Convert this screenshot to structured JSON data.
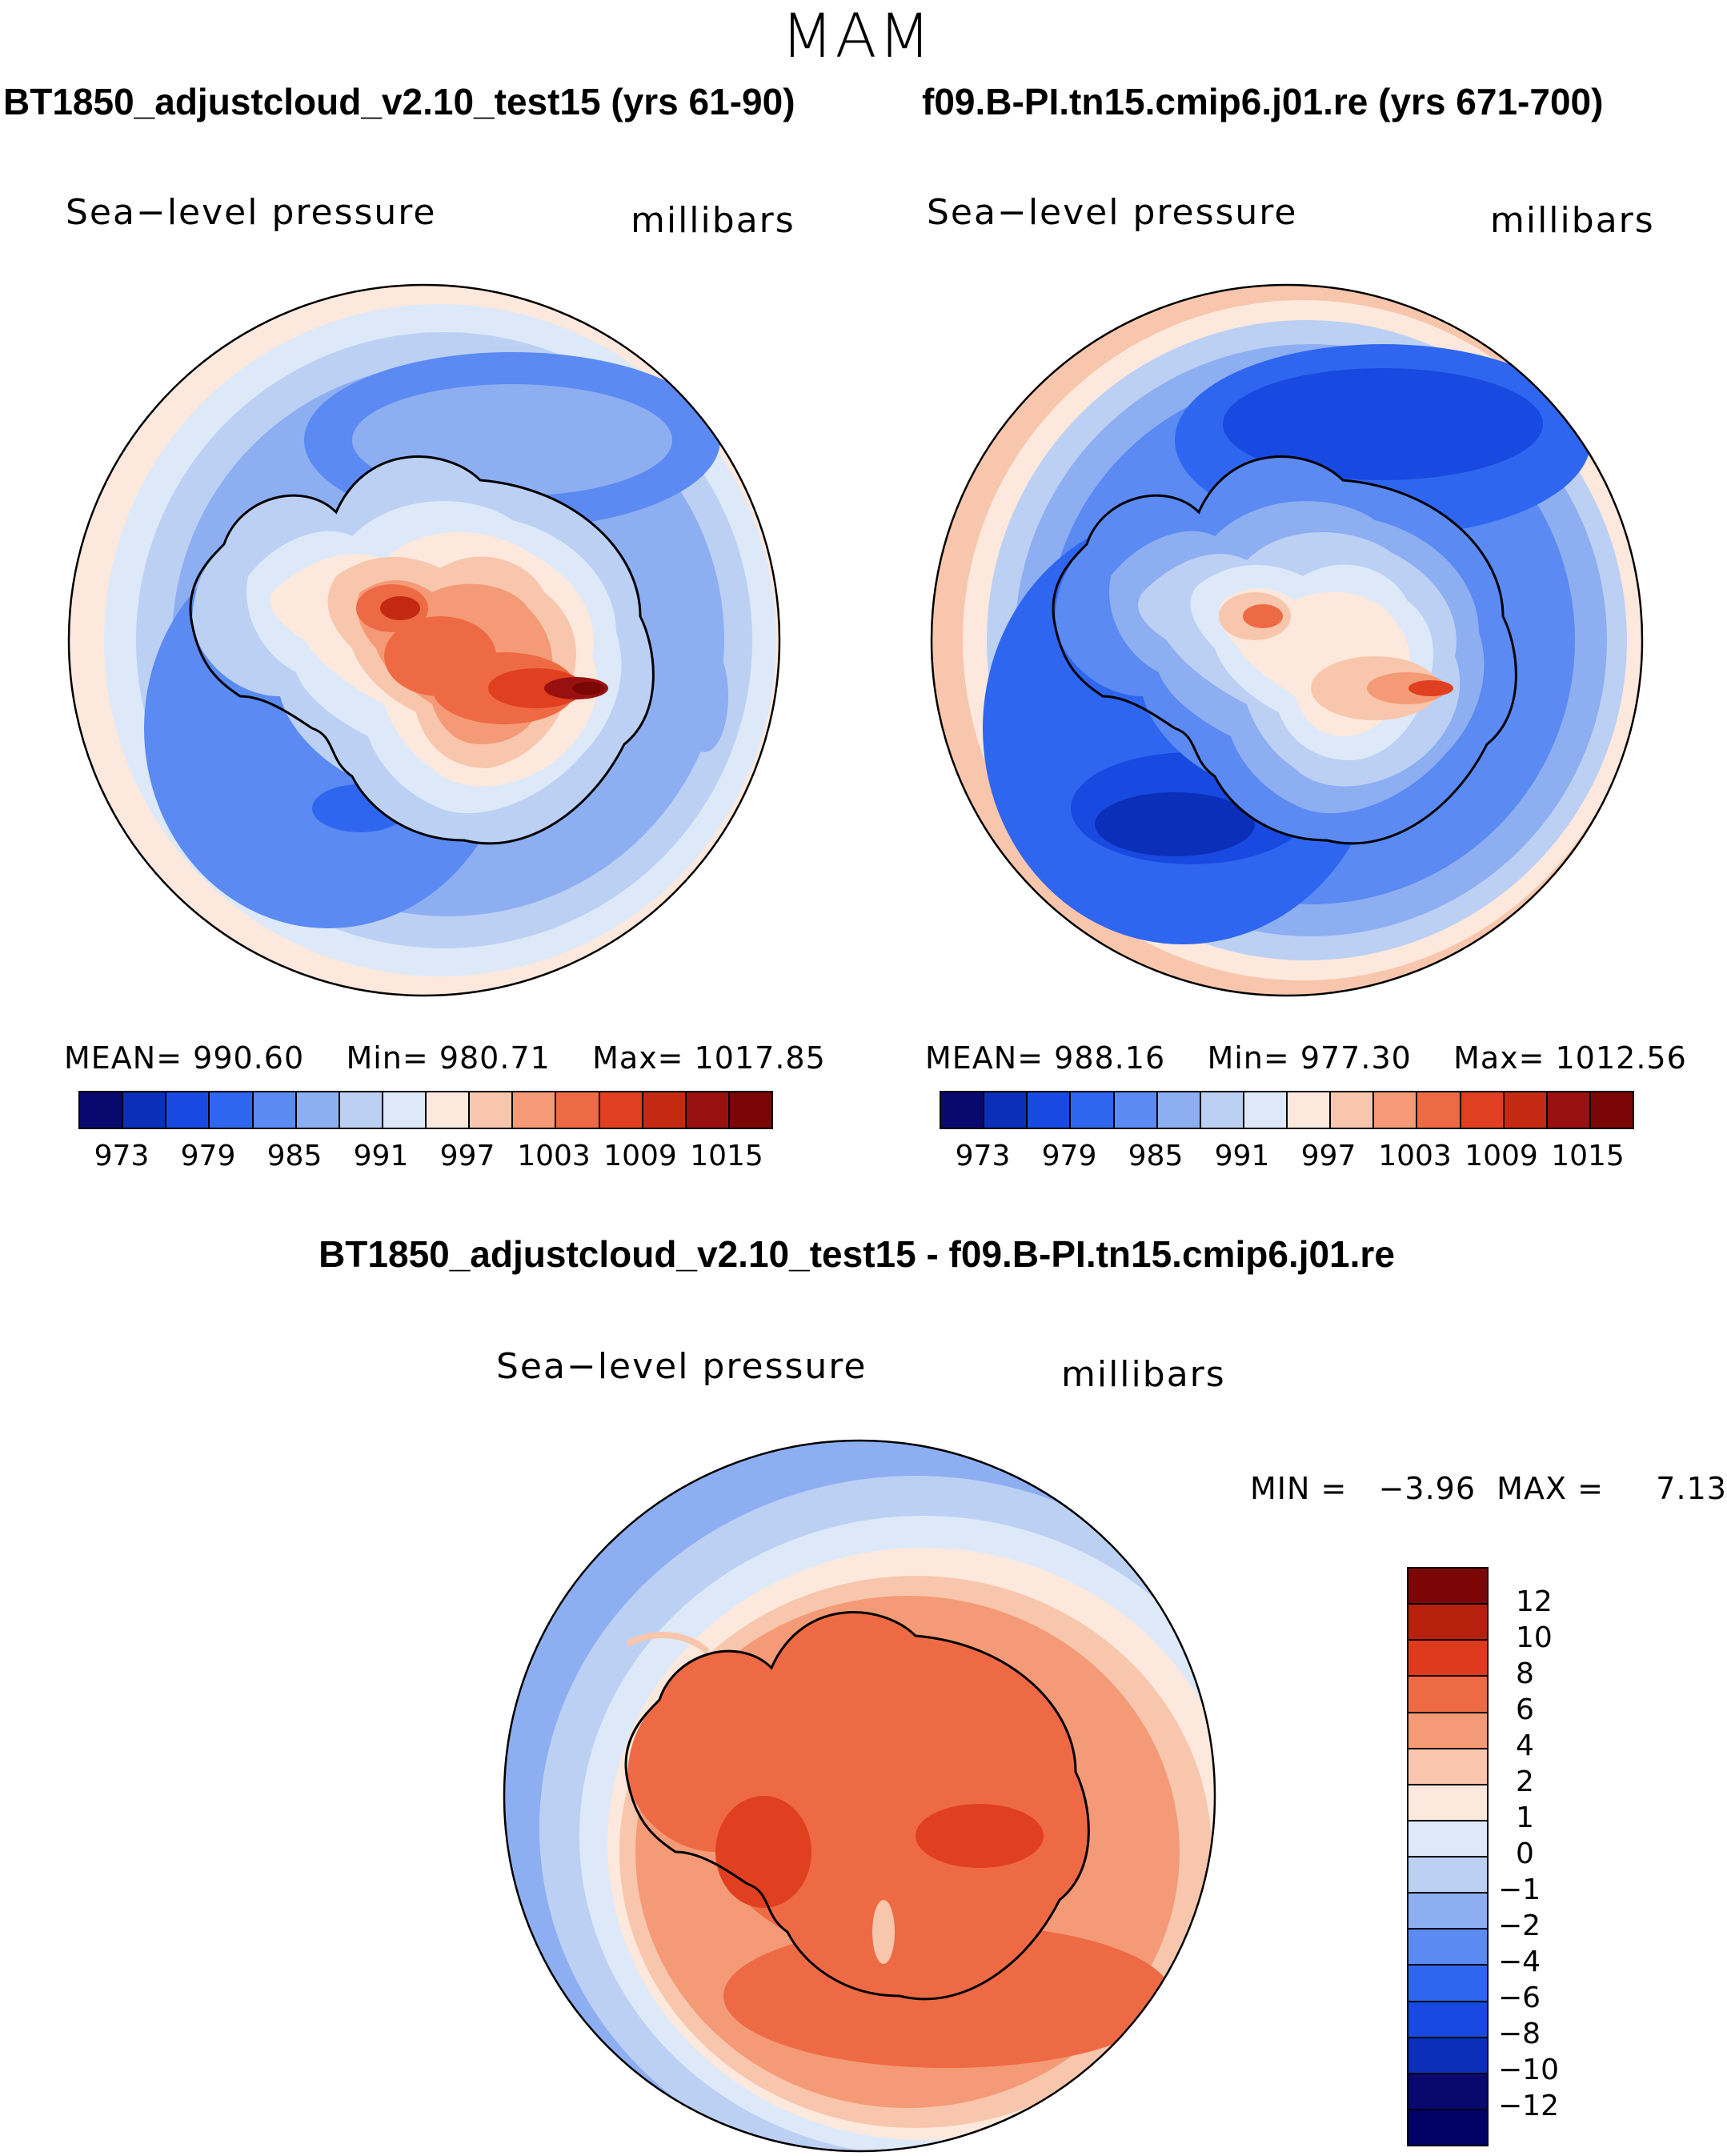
{
  "figure_title": "MAM",
  "panels": [
    {
      "title": "BT1850_adjustcloud_v2.10_test15 (yrs 61-90)",
      "variable": "Sea−level pressure",
      "units": "millibars",
      "stats": {
        "mean_label": "MEAN=",
        "mean": "990.60",
        "min_label": "Min=",
        "min": "980.71",
        "max_label": "Max=",
        "max": "1017.85"
      }
    },
    {
      "title": "f09.B-PI.tn15.cmip6.j01.re (yrs 671-700)",
      "variable": "Sea−level pressure",
      "units": "millibars",
      "stats": {
        "mean_label": "MEAN=",
        "mean": "988.16",
        "min_label": "Min=",
        "min": "977.30",
        "max_label": "Max=",
        "max": "1012.56"
      }
    }
  ],
  "diff_panel": {
    "title": "BT1850_adjustcloud_v2.10_test15 - f09.B-PI.tn15.cmip6.j01.re",
    "variable": "Sea−level pressure",
    "units": "millibars",
    "minmax_text": "MIN =   −3.96  MAX =     7.13"
  },
  "abs_colorbar": {
    "levels": [
      "973",
      "979",
      "985",
      "991",
      "997",
      "1003",
      "1009",
      "1015"
    ],
    "colors": [
      "#08086e",
      "#0b2fb8",
      "#1849e0",
      "#2f66f0",
      "#5a8af2",
      "#8eaef2",
      "#bcd0f4",
      "#dde9f8",
      "#fce8dc",
      "#f8c6ac",
      "#f49a76",
      "#ee6a45",
      "#e0401f",
      "#c42a12",
      "#991010",
      "#7a0606"
    ]
  },
  "diff_colorbar": {
    "levels": [
      "12",
      "10",
      "8",
      "6",
      "4",
      "2",
      "1",
      "0",
      "−1",
      "−2",
      "−4",
      "−6",
      "−8",
      "−10",
      "−12"
    ],
    "colors": [
      "#7c0606",
      "#b8200e",
      "#dd3b1c",
      "#ee6a45",
      "#f49a76",
      "#f8c6ac",
      "#fce8dc",
      "#dde9f8",
      "#bcd0f4",
      "#8eaef2",
      "#5a8af2",
      "#2f66f0",
      "#1849e0",
      "#0b2fb8",
      "#08086e",
      "#000066"
    ]
  },
  "chart_data": [
    {
      "type": "heatmap",
      "title": "BT1850_adjustcloud_v2.10_test15 (yrs 61-90)",
      "variable": "Sea-level pressure",
      "units": "millibars",
      "mean": 990.6,
      "min": 980.71,
      "max": 1017.85,
      "projection": "south polar stereographic"
    },
    {
      "type": "heatmap",
      "title": "f09.B-PI.tn15.cmip6.j01.re (yrs 671-700)",
      "variable": "Sea-level pressure",
      "units": "millibars",
      "mean": 988.16,
      "min": 977.3,
      "max": 1012.56,
      "projection": "south polar stereographic"
    },
    {
      "type": "heatmap",
      "title": "BT1850_adjustcloud_v2.10_test15 - f09.B-PI.tn15.cmip6.j01.re",
      "variable": "Sea-level pressure",
      "units": "millibars",
      "min": -3.96,
      "max": 7.13,
      "projection": "south polar stereographic"
    }
  ]
}
